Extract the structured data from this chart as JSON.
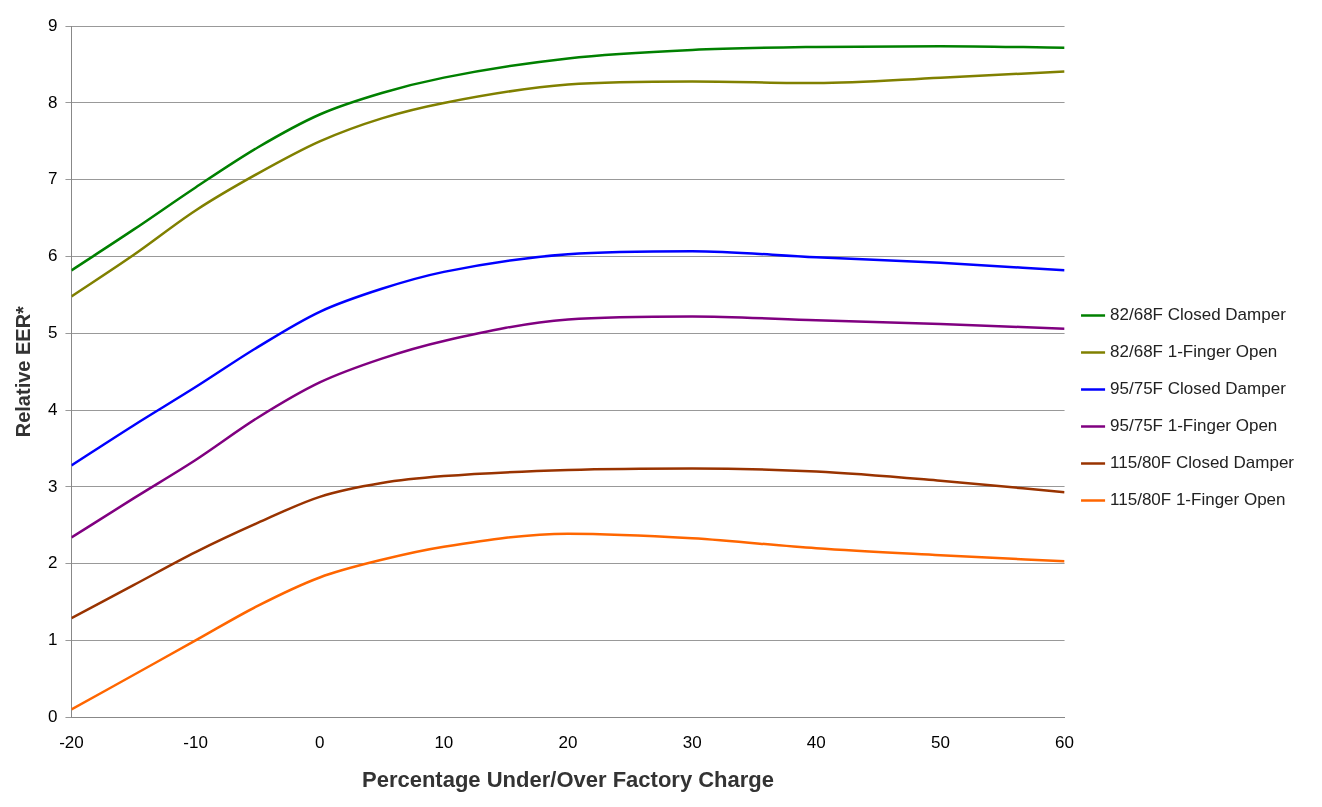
{
  "chart_data": {
    "type": "line",
    "xlabel": "Percentage Under/Over Factory Charge",
    "ylabel": "Relative EER*",
    "x": [
      -20,
      -15,
      -10,
      -5,
      0,
      5,
      10,
      20,
      30,
      40,
      50,
      60
    ],
    "series": [
      {
        "name": "82/68F Closed Damper",
        "color": "#008000",
        "values": [
          5.82,
          6.35,
          6.9,
          7.42,
          7.85,
          8.13,
          8.33,
          8.58,
          8.69,
          8.73,
          8.74,
          8.72
        ]
      },
      {
        "name": "82/68F 1-Finger Open",
        "color": "#808000",
        "values": [
          5.48,
          6.02,
          6.6,
          7.08,
          7.5,
          7.8,
          8.0,
          8.24,
          8.28,
          8.26,
          8.33,
          8.41
        ]
      },
      {
        "name": "95/75F Closed Damper",
        "color": "#0000ff",
        "values": [
          3.28,
          3.8,
          4.3,
          4.82,
          5.28,
          5.58,
          5.8,
          6.03,
          6.07,
          5.99,
          5.92,
          5.82
        ]
      },
      {
        "name": "95/75F 1-Finger Open",
        "color": "#800080",
        "values": [
          2.34,
          2.85,
          3.35,
          3.9,
          4.36,
          4.67,
          4.9,
          5.18,
          5.22,
          5.17,
          5.12,
          5.06
        ]
      },
      {
        "name": "115/80F Closed Damper",
        "color": "#993300",
        "values": [
          1.29,
          1.72,
          2.15,
          2.53,
          2.87,
          3.05,
          3.14,
          3.22,
          3.24,
          3.2,
          3.08,
          2.93
        ]
      },
      {
        "name": "115/80F 1-Finger Open",
        "color": "#ff6600",
        "values": [
          0.1,
          0.55,
          1.0,
          1.45,
          1.82,
          2.05,
          2.22,
          2.39,
          2.33,
          2.2,
          2.11,
          2.03
        ]
      }
    ],
    "xlim": [
      -20,
      60
    ],
    "xticks": [
      -20,
      -10,
      0,
      10,
      20,
      30,
      40,
      50,
      60
    ],
    "ylim": [
      0,
      9
    ],
    "yticks": [
      0,
      1,
      2,
      3,
      4,
      5,
      6,
      7,
      8,
      9
    ],
    "grid": "y",
    "legend": "right",
    "marker": "none",
    "line_style": "solid"
  }
}
